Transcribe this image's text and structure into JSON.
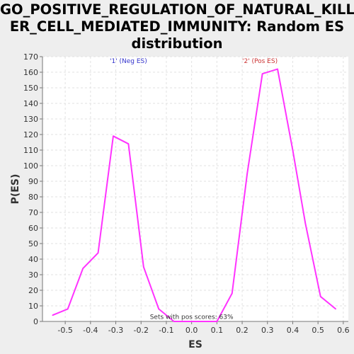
{
  "title": "GO_POSITIVE_REGULATION_OF_NATURAL_KILLER_CELL_MEDIATED_IMMUNITY: Random ES distribution",
  "title_lines": [
    "GO_POSITIVE_REGULATION_OF_NATURAL_KILL",
    "ER_CELL_MEDIATED_IMMUNITY: Random ES",
    "distribution"
  ],
  "colors": {
    "line": "#ff33ff",
    "neg_label": "#3333cc",
    "pos_label": "#cc3333",
    "plot_bg": "#ffffff",
    "page_bg": "#eeeeee"
  },
  "chart_data": {
    "type": "line",
    "title": "GO_POSITIVE_REGULATION_OF_NATURAL_KILLER_CELL_MEDIATED_IMMUNITY: Random ES distribution",
    "xlabel": "ES",
    "ylabel": "P(ES)",
    "xlim": [
      -0.59,
      0.62
    ],
    "ylim": [
      0,
      170
    ],
    "xticks": [
      -0.5,
      -0.4,
      -0.3,
      -0.2,
      -0.1,
      0.0,
      0.1,
      0.2,
      0.3,
      0.4,
      0.5,
      0.6
    ],
    "xtick_labels": [
      "-0.5",
      "-0.4",
      "-0.3",
      "-0.2",
      "-0.1",
      "0.0",
      "0.1",
      "0.2",
      "0.3",
      "0.4",
      "0.5",
      "0.6"
    ],
    "yticks": [
      0,
      10,
      20,
      30,
      40,
      50,
      60,
      70,
      80,
      90,
      100,
      110,
      120,
      130,
      140,
      150,
      160,
      170
    ],
    "ytick_labels": [
      "0",
      "10",
      "20",
      "30",
      "40",
      "50",
      "60",
      "70",
      "80",
      "90",
      "100",
      "110",
      "120",
      "130",
      "140",
      "150",
      "160",
      "170"
    ],
    "grid": true,
    "series": [
      {
        "x": [
          -0.55,
          -0.49,
          -0.43,
          -0.37,
          -0.31,
          -0.25,
          -0.19,
          -0.13,
          -0.07,
          0.0,
          0.1,
          0.16,
          0.22,
          0.28,
          0.34,
          0.4,
          0.45,
          0.51,
          0.57
        ],
        "values": [
          4,
          8,
          34,
          44,
          119,
          114,
          35,
          8,
          0,
          0,
          0,
          18,
          95,
          159,
          162,
          110,
          63,
          16,
          8
        ]
      }
    ],
    "annotations": [
      {
        "text": "'1' (Neg ES)",
        "x": -0.25,
        "y": 166,
        "color": "#3333cc"
      },
      {
        "text": "'2' (Pos ES)",
        "x": 0.27,
        "y": 166,
        "color": "#cc3333"
      },
      {
        "text": "Sets with pos scores: 63%",
        "x": 0.0,
        "y": 1.5,
        "color": "#333333"
      }
    ]
  }
}
